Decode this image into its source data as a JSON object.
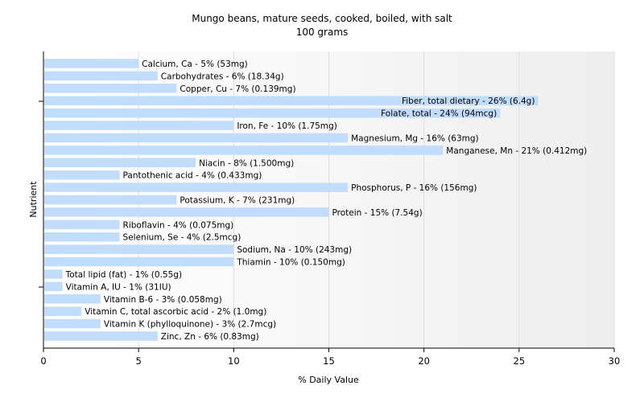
{
  "chart_data": {
    "type": "bar",
    "orientation": "horizontal",
    "title": "Mungo beans, mature seeds, cooked, boiled, with salt",
    "subtitle": "100 grams",
    "xlabel": "% Daily Value",
    "ylabel": "Nutrient",
    "xlim": [
      0,
      30
    ],
    "xticks": [
      "0",
      "5",
      "10",
      "15",
      "20",
      "25",
      "30"
    ],
    "grid": true,
    "bar_color": "#c2dcfb",
    "categories": [
      "Calcium, Ca",
      "Carbohydrates",
      "Copper, Cu",
      "Fiber, total dietary",
      "Folate, total",
      "Iron, Fe",
      "Magnesium, Mg",
      "Manganese, Mn",
      "Niacin",
      "Pantothenic acid",
      "Phosphorus, P",
      "Potassium, K",
      "Protein",
      "Riboflavin",
      "Selenium, Se",
      "Sodium, Na",
      "Thiamin",
      "Total lipid (fat)",
      "Vitamin A, IU",
      "Vitamin B-6",
      "Vitamin C, total ascorbic acid",
      "Vitamin K (phylloquinone)",
      "Zinc, Zn"
    ],
    "values": [
      5,
      6,
      7,
      26,
      24,
      10,
      16,
      21,
      8,
      4,
      16,
      7,
      15,
      4,
      4,
      10,
      10,
      1,
      1,
      3,
      2,
      3,
      6
    ],
    "labels": [
      "Calcium, Ca - 5% (53mg)",
      "Carbohydrates - 6% (18.34g)",
      "Copper, Cu - 7% (0.139mg)",
      "Fiber, total dietary - 26% (6.4g)",
      "Folate, total - 24% (94mcg)",
      "Iron, Fe - 10% (1.75mg)",
      "Magnesium, Mg - 16% (63mg)",
      "Manganese, Mn - 21% (0.412mg)",
      "Niacin - 8% (1.500mg)",
      "Pantothenic acid - 4% (0.433mg)",
      "Phosphorus, P - 16% (156mg)",
      "Potassium, K - 7% (231mg)",
      "Protein - 15% (7.54g)",
      "Riboflavin - 4% (0.075mg)",
      "Selenium, Se - 4% (2.5mcg)",
      "Sodium, Na - 10% (243mg)",
      "Thiamin - 10% (0.150mg)",
      "Total lipid (fat) - 1% (0.55g)",
      "Vitamin A, IU - 1% (31IU)",
      "Vitamin B-6 - 3% (0.058mg)",
      "Vitamin C, total ascorbic acid - 2% (1.0mg)",
      "Vitamin K (phylloquinone) - 3% (2.7mcg)",
      "Zinc, Zn - 6% (0.83mg)"
    ]
  }
}
